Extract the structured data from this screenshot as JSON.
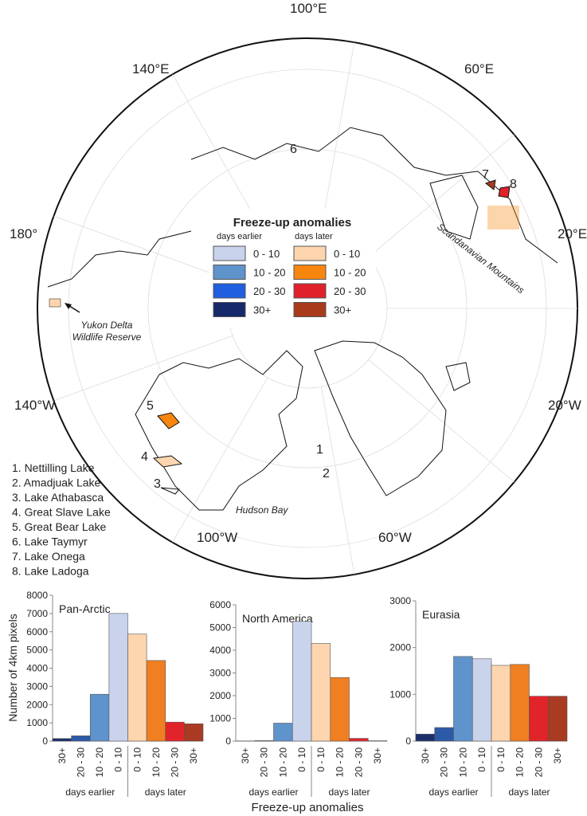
{
  "map": {
    "lon_labels": [
      "100°E",
      "60°E",
      "140°E",
      "180°",
      "20°E",
      "140°W",
      "20°W",
      "100°W",
      "60°W"
    ],
    "lake_numbers": [
      "1",
      "2",
      "3",
      "4",
      "5",
      "6",
      "7",
      "8"
    ],
    "annotations": [
      "Yukon Delta Wildlife Reserve",
      "Scandanavian Mountains",
      "Hudson Bay"
    ],
    "lakes": [
      "1. Nettilling Lake",
      "2. Amadjuak Lake",
      "3. Lake Athabasca",
      "4. Great Slave Lake",
      "5. Great Bear Lake",
      "6. Lake Taymyr",
      "7. Lake Onega",
      "8. Lake Ladoga"
    ],
    "legend": {
      "title": "Freeze-up anomalies",
      "earlier_title": "days earlier",
      "later_title": "days later",
      "earlier": [
        {
          "label": "0 - 10",
          "color": "#c9d3ec"
        },
        {
          "label": "10 - 20",
          "color": "#5f93cc"
        },
        {
          "label": "20 - 30",
          "color": "#1f5fe0"
        },
        {
          "label": "30+",
          "color": "#15296b"
        }
      ],
      "later": [
        {
          "label": "0 - 10",
          "color": "#fdd5ae"
        },
        {
          "label": "10 - 20",
          "color": "#f7860f"
        },
        {
          "label": "20 - 30",
          "color": "#e0202a"
        },
        {
          "label": "30+",
          "color": "#a93b1c"
        }
      ]
    }
  },
  "figure": {
    "y_label": "Number of 4km pixels",
    "x_label": "Freeze-up anomalies",
    "earlier_label": "days earlier",
    "later_label": "days later"
  },
  "chart_data": [
    {
      "type": "bar",
      "title": "Pan-Arctic",
      "categories": [
        "30+",
        "20 - 30",
        "10 - 20",
        "0 - 10",
        "0 - 10",
        "10 - 20",
        "20 - 30",
        "30+"
      ],
      "values": [
        140,
        290,
        2570,
        7000,
        5870,
        4420,
        1040,
        950
      ],
      "colors": [
        "#1c2f6b",
        "#2d5aa8",
        "#5f93cc",
        "#c9d3ec",
        "#fdd5ae",
        "#f07f22",
        "#e0242a",
        "#a93b22"
      ],
      "ylim": [
        0,
        8000
      ],
      "yticks": [
        0,
        1000,
        2000,
        3000,
        4000,
        5000,
        6000,
        7000,
        8000
      ]
    },
    {
      "type": "bar",
      "title": "North America",
      "categories": [
        "30+",
        "20 - 30",
        "10 - 20",
        "0 - 10",
        "0 - 10",
        "10 - 20",
        "20 - 30",
        "30+"
      ],
      "values": [
        5,
        20,
        790,
        5270,
        4300,
        2800,
        120,
        15
      ],
      "colors": [
        "#1c2f6b",
        "#2d5aa8",
        "#5f93cc",
        "#c9d3ec",
        "#fdd5ae",
        "#f07f22",
        "#e0242a",
        "#a93b22"
      ],
      "ylim": [
        0,
        6000
      ],
      "yticks": [
        0,
        1000,
        2000,
        3000,
        4000,
        5000,
        6000
      ]
    },
    {
      "type": "bar",
      "title": "Eurasia",
      "categories": [
        "30+",
        "20 - 30",
        "10 - 20",
        "0 - 10",
        "0 - 10",
        "10 - 20",
        "20 - 30",
        "30+"
      ],
      "values": [
        150,
        290,
        1810,
        1760,
        1620,
        1640,
        960,
        960
      ],
      "colors": [
        "#1c2f6b",
        "#2d5aa8",
        "#5f93cc",
        "#c9d3ec",
        "#fdd5ae",
        "#f07f22",
        "#e0242a",
        "#a93b22"
      ],
      "ylim": [
        0,
        3000
      ],
      "yticks": [
        0,
        1000,
        2000,
        3000
      ]
    }
  ]
}
